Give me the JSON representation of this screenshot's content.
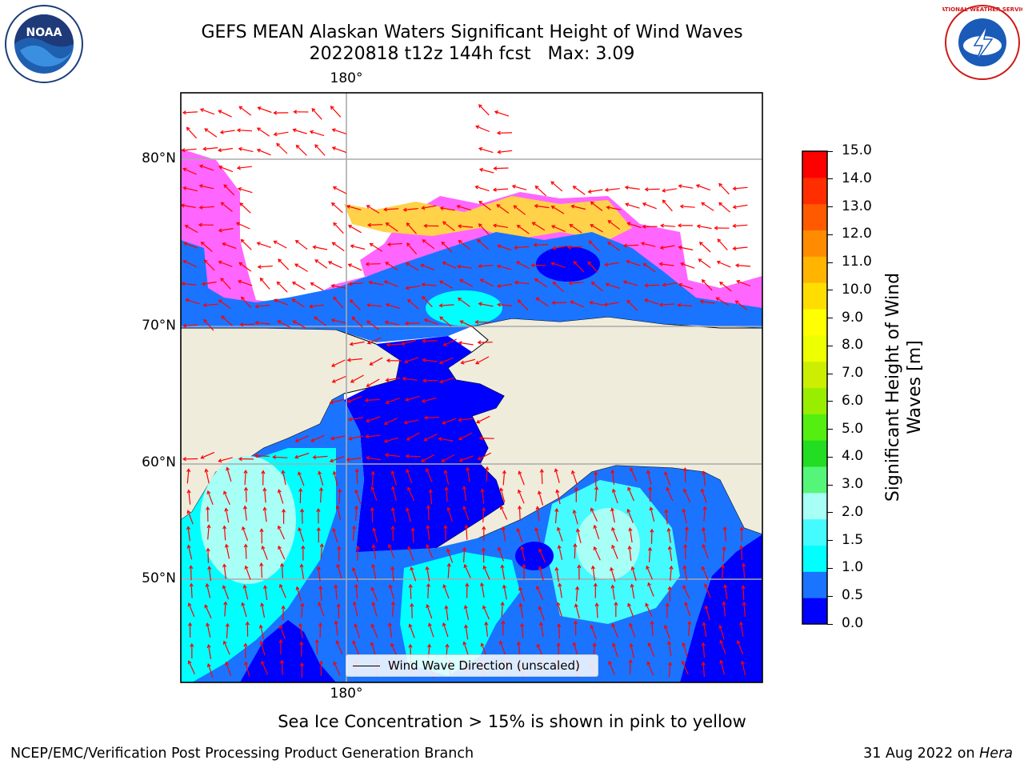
{
  "header": {
    "title_line1": "GEFS MEAN Alaskan Waters Significant Height of Wind Waves",
    "title_line2": "20220818 t12z 144h fcst   Max: 3.09"
  },
  "logos": {
    "noaa_text": "NOAA",
    "nws_text": "NATIONAL WEATHER SERVICE"
  },
  "map": {
    "lon_label_top": "180°",
    "lon_label_bottom": "180°",
    "lat_labels": [
      "80°N",
      "70°N",
      "60°N",
      "50°N"
    ],
    "legend_label": "Wind Wave Direction (unscaled)",
    "colors": {
      "land": "#efecdc",
      "ice_pink": "#ff66ff",
      "ice_yellow": "#ffd24a",
      "wave_0": "#0000ff",
      "wave_05": "#1a74ff",
      "wave_10": "#00ffff",
      "wave_15": "#66ffff",
      "wave_20": "#a8fff5",
      "arrow": "#ff0000"
    }
  },
  "colorbar": {
    "label": "Significant Height of Wind Waves [m]",
    "ticks": [
      "15.0",
      "14.0",
      "13.0",
      "12.0",
      "11.0",
      "10.0",
      "9.0",
      "8.0",
      "7.0",
      "6.0",
      "5.0",
      "4.0",
      "3.0",
      "2.0",
      "1.5",
      "1.0",
      "0.5",
      "0.0"
    ],
    "colors": [
      "#0000ff",
      "#1a74ff",
      "#00ffff",
      "#44fbff",
      "#a8fff5",
      "#55f57a",
      "#22dd22",
      "#55ee11",
      "#99ee00",
      "#ccee00",
      "#eeff00",
      "#ffff00",
      "#ffdd00",
      "#ffb400",
      "#ff8c00",
      "#ff5a00",
      "#ff2d00",
      "#ff0000"
    ]
  },
  "footnote": "Sea Ice Concentration > 15% is shown in pink to yellow",
  "footer_left": "NCEP/EMC/Verification Post Processing Product Generation Branch",
  "footer_date": "31 Aug 2022 on",
  "footer_machine": "Hera"
}
